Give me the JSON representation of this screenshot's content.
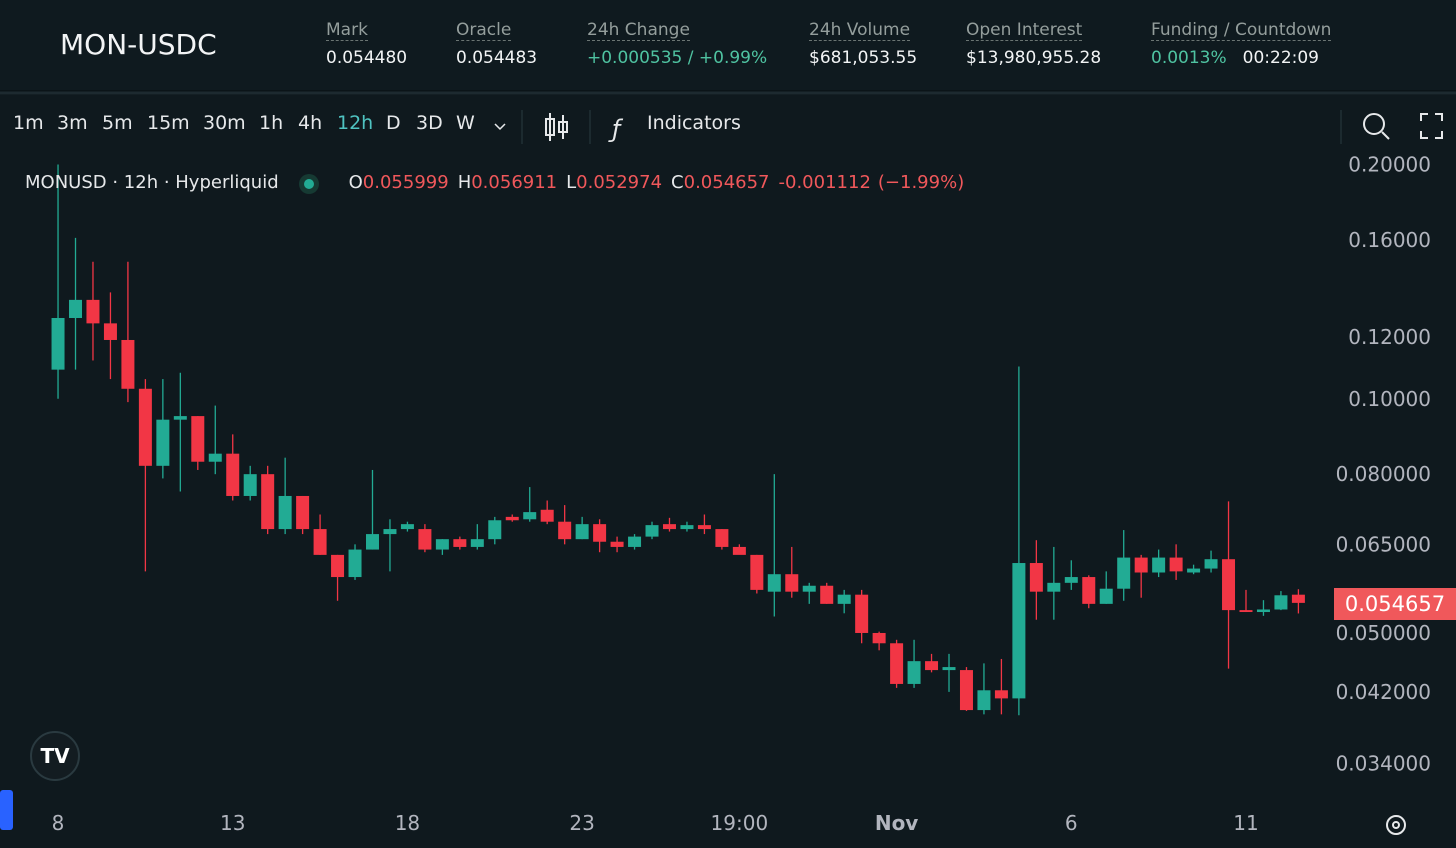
{
  "header": {
    "symbol": "MON-USDC",
    "stats": [
      {
        "label": "Mark",
        "value": "0.054480"
      },
      {
        "label": "Oracle",
        "value": "0.054483"
      },
      {
        "label": "24h Change",
        "value": "+0.000535 / +0.99%"
      },
      {
        "label": "24h Volume",
        "value": "$681,053.55"
      },
      {
        "label": "Open Interest",
        "value": "$13,980,955.28"
      },
      {
        "label": "Funding / Countdown",
        "value": "0.0013%",
        "value2": "00:22:09"
      }
    ]
  },
  "toolbar": {
    "intervals": [
      "1m",
      "3m",
      "5m",
      "15m",
      "30m",
      "1h",
      "4h",
      "12h",
      "D",
      "3D",
      "W"
    ],
    "active_interval": 7,
    "indicators": "Indicators"
  },
  "legend": {
    "title": "MONUSD · 12h · Hyperliquid",
    "o": "O",
    "h": "H",
    "l": "L",
    "c": "C",
    "change": "-0.001112",
    "change_pct": "(−1.99%)"
  },
  "chart_data": {
    "type": "candlestick",
    "up_color": "#22ab94",
    "down_color": "#f23645",
    "log_scale": true,
    "grid": false,
    "categories": [
      "8",
      null,
      null,
      null,
      null,
      null,
      null,
      null,
      null,
      null,
      "13",
      null,
      null,
      null,
      null,
      null,
      null,
      null,
      null,
      null,
      "18",
      null,
      null,
      null,
      null,
      null,
      null,
      null,
      null,
      null,
      "23",
      null,
      null,
      null,
      null,
      null,
      null,
      null,
      null,
      "19:00",
      null,
      null,
      null,
      null,
      null,
      null,
      null,
      null,
      "Nov",
      null,
      null,
      null,
      null,
      null,
      null,
      null,
      null,
      null,
      "6",
      null,
      null,
      null,
      null,
      null,
      null,
      null,
      null,
      null,
      "11",
      null,
      null,
      null
    ],
    "open": [
      0.109,
      0.127,
      0.134,
      0.125,
      0.119,
      0.103,
      0.082,
      0.094,
      0.095,
      0.083,
      0.085,
      0.075,
      0.08,
      0.068,
      0.075,
      0.068,
      0.063,
      0.059,
      0.064,
      0.067,
      0.068,
      0.068,
      0.064,
      0.066,
      0.0645,
      0.066,
      0.0705,
      0.07,
      0.072,
      0.0695,
      0.066,
      0.069,
      0.0655,
      0.0645,
      0.0665,
      0.069,
      0.068,
      0.0688,
      0.068,
      0.0645,
      0.063,
      0.0565,
      0.0595,
      0.0565,
      0.0575,
      0.0545,
      0.056,
      0.05,
      0.0485,
      0.043,
      0.046,
      0.0448,
      0.0448,
      0.0398,
      0.0422,
      0.0412,
      0.0615,
      0.0565,
      0.058,
      0.059,
      0.0545,
      0.057,
      0.0625,
      0.0598,
      0.0625,
      0.0598,
      0.0605,
      0.0622,
      0.0535,
      0.0532,
      0.0536,
      0.055999
    ],
    "high": [
      0.2,
      0.161,
      0.15,
      0.137,
      0.15,
      0.106,
      0.106,
      0.108,
      0.095,
      0.098,
      0.09,
      0.082,
      0.082,
      0.084,
      0.075,
      0.071,
      0.063,
      0.065,
      0.081,
      0.07,
      0.0695,
      0.069,
      0.066,
      0.0665,
      0.069,
      0.0705,
      0.071,
      0.077,
      0.074,
      0.073,
      0.0705,
      0.07,
      0.0665,
      0.067,
      0.0695,
      0.0703,
      0.0695,
      0.071,
      0.068,
      0.065,
      0.063,
      0.08,
      0.0645,
      0.058,
      0.058,
      0.0568,
      0.0568,
      0.0502,
      0.049,
      0.049,
      0.047,
      0.047,
      0.0452,
      0.0457,
      0.0463,
      0.11,
      0.0658,
      0.0645,
      0.062,
      0.0593,
      0.06,
      0.0678,
      0.063,
      0.064,
      0.065,
      0.0612,
      0.0638,
      0.0738,
      0.0568,
      0.0551,
      0.0566,
      0.056911
    ],
    "low": [
      0.1,
      0.109,
      0.112,
      0.106,
      0.099,
      0.06,
      0.079,
      0.076,
      0.081,
      0.08,
      0.074,
      0.074,
      0.067,
      0.067,
      0.067,
      0.063,
      0.055,
      0.0585,
      0.064,
      0.06,
      0.0675,
      0.0635,
      0.063,
      0.064,
      0.064,
      0.065,
      0.0695,
      0.0695,
      0.069,
      0.065,
      0.066,
      0.0635,
      0.0635,
      0.064,
      0.066,
      0.0675,
      0.0675,
      0.067,
      0.064,
      0.0635,
      0.0562,
      0.0525,
      0.0555,
      0.0545,
      0.0545,
      0.053,
      0.0485,
      0.0475,
      0.0425,
      0.0425,
      0.0445,
      0.042,
      0.0397,
      0.0393,
      0.0393,
      0.0392,
      0.052,
      0.052,
      0.0568,
      0.0538,
      0.0545,
      0.055,
      0.0555,
      0.059,
      0.0585,
      0.0595,
      0.0598,
      0.045,
      0.0532,
      0.0526,
      0.0535,
      0.052974
    ],
    "close": [
      0.127,
      0.134,
      0.125,
      0.119,
      0.103,
      0.082,
      0.094,
      0.095,
      0.083,
      0.085,
      0.075,
      0.08,
      0.068,
      0.075,
      0.068,
      0.063,
      0.059,
      0.064,
      0.067,
      0.068,
      0.069,
      0.064,
      0.066,
      0.0645,
      0.066,
      0.0698,
      0.0698,
      0.0715,
      0.0695,
      0.066,
      0.069,
      0.0655,
      0.0645,
      0.0665,
      0.0688,
      0.068,
      0.0688,
      0.068,
      0.0645,
      0.063,
      0.0568,
      0.0595,
      0.0565,
      0.0575,
      0.0545,
      0.056,
      0.05,
      0.0485,
      0.043,
      0.046,
      0.0448,
      0.0452,
      0.0398,
      0.0422,
      0.0412,
      0.0615,
      0.0565,
      0.058,
      0.059,
      0.0545,
      0.057,
      0.0625,
      0.0598,
      0.0625,
      0.06,
      0.0605,
      0.0622,
      0.0535,
      0.0532,
      0.0536,
      0.0559,
      0.054657
    ],
    "ylim": [
      0.0305,
      0.2088
    ],
    "yticks": [
      {
        "value": 0.2,
        "label": "0.20000"
      },
      {
        "value": 0.16,
        "label": "0.16000"
      },
      {
        "value": 0.12,
        "label": "0.12000"
      },
      {
        "value": 0.1,
        "label": "0.10000"
      },
      {
        "value": 0.08,
        "label": "0.080000"
      },
      {
        "value": 0.065,
        "label": "0.065000"
      },
      {
        "value": 0.05,
        "label": "0.050000"
      },
      {
        "value": 0.042,
        "label": "0.042000"
      },
      {
        "value": 0.034,
        "label": "0.034000"
      }
    ]
  }
}
